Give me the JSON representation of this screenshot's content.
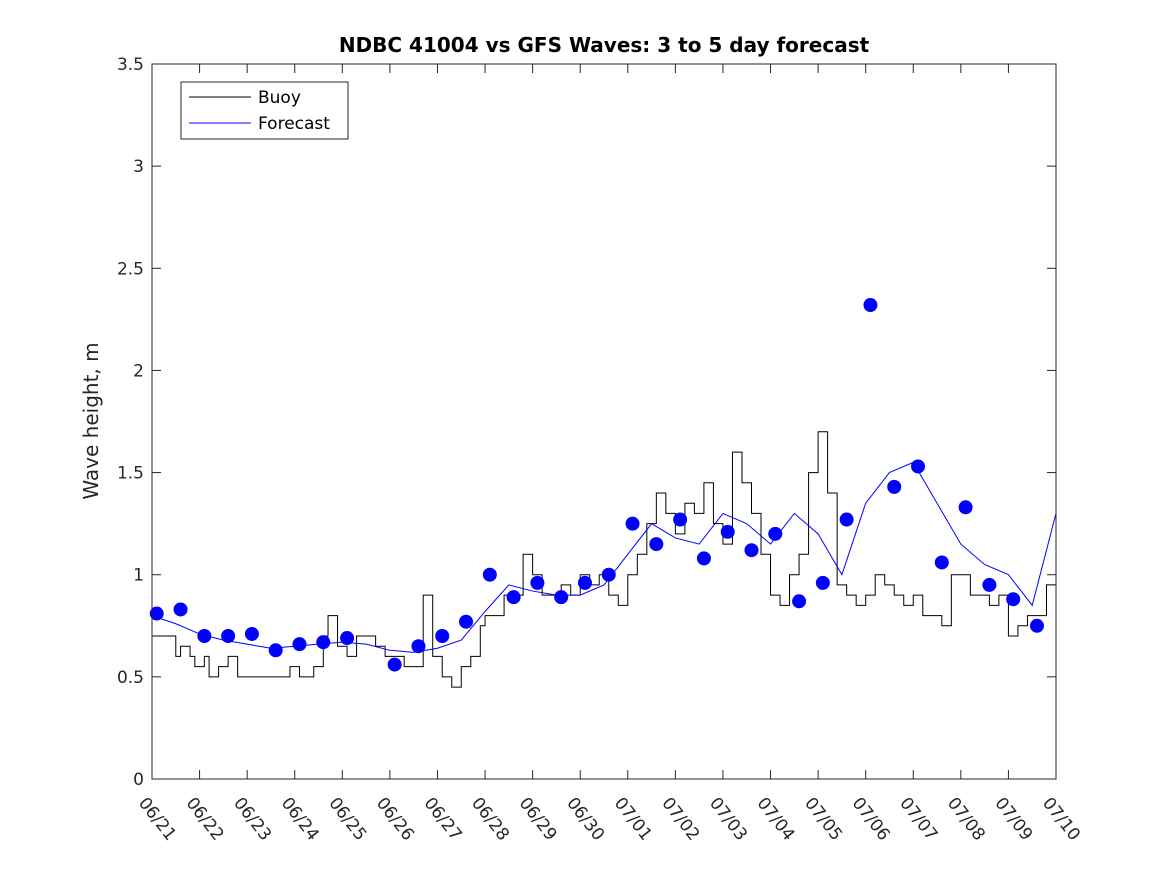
{
  "chart_data": {
    "type": "line",
    "title": "NDBC 41004 vs GFS Waves: 3 to 5 day forecast",
    "xlabel": "",
    "ylabel": "Wave height, m",
    "xlim": [
      "06/21",
      "07/10"
    ],
    "ylim": [
      0,
      3.5
    ],
    "x_ticks": [
      "06/21",
      "06/22",
      "06/23",
      "06/24",
      "06/25",
      "06/26",
      "06/27",
      "06/28",
      "06/29",
      "06/30",
      "07/01",
      "07/02",
      "07/03",
      "07/04",
      "07/05",
      "07/06",
      "07/07",
      "07/08",
      "07/09",
      "07/10"
    ],
    "y_ticks": [
      "0",
      "0.5",
      "1",
      "1.5",
      "2",
      "2.5",
      "3",
      "3.5"
    ],
    "grid": false,
    "legend": {
      "position": "top-left",
      "entries": [
        "Buoy",
        "Forecast"
      ]
    },
    "colors": {
      "buoy": "#000000",
      "forecast": "#0000ff"
    },
    "series": [
      {
        "name": "Buoy",
        "type": "line",
        "x_days": [
          0,
          0.1,
          0.3,
          0.5,
          0.6,
          0.8,
          0.9,
          1.1,
          1.2,
          1.4,
          1.6,
          1.8,
          2.0,
          2.3,
          2.6,
          2.9,
          3.1,
          3.4,
          3.6,
          3.7,
          3.9,
          4.1,
          4.3,
          4.5,
          4.7,
          4.9,
          5.0,
          5.1,
          5.3,
          5.5,
          5.7,
          5.9,
          6.1,
          6.3,
          6.5,
          6.7,
          6.9,
          7.0,
          7.2,
          7.4,
          7.6,
          7.8,
          8.0,
          8.2,
          8.4,
          8.6,
          8.8,
          9.0,
          9.2,
          9.4,
          9.6,
          9.8,
          10.0,
          10.2,
          10.4,
          10.6,
          10.8,
          11.0,
          11.2,
          11.4,
          11.6,
          11.8,
          12.0,
          12.2,
          12.4,
          12.6,
          12.8,
          13.0,
          13.2,
          13.4,
          13.6,
          13.8,
          14.0,
          14.2,
          14.4,
          14.6,
          14.8,
          15.0,
          15.2,
          15.4,
          15.6,
          15.8,
          16.0,
          16.2,
          16.4,
          16.6,
          16.8,
          17.0,
          17.2,
          17.4,
          17.6,
          17.8,
          18.0,
          18.2,
          18.4,
          18.6,
          18.8,
          19.0
        ],
        "values": [
          0.7,
          0.7,
          0.7,
          0.6,
          0.65,
          0.6,
          0.55,
          0.6,
          0.5,
          0.55,
          0.6,
          0.5,
          0.5,
          0.5,
          0.5,
          0.55,
          0.5,
          0.55,
          0.7,
          0.8,
          0.65,
          0.6,
          0.7,
          0.7,
          0.65,
          0.6,
          0.6,
          0.6,
          0.55,
          0.55,
          0.9,
          0.6,
          0.5,
          0.45,
          0.55,
          0.6,
          0.75,
          0.8,
          0.8,
          0.9,
          0.9,
          1.1,
          1.0,
          0.9,
          0.9,
          0.95,
          0.9,
          1.0,
          0.95,
          1.0,
          0.9,
          0.85,
          1.0,
          1.1,
          1.25,
          1.4,
          1.3,
          1.2,
          1.35,
          1.3,
          1.45,
          1.25,
          1.15,
          1.6,
          1.45,
          1.3,
          1.1,
          0.9,
          0.85,
          1.0,
          1.1,
          1.5,
          1.7,
          1.4,
          0.95,
          0.9,
          0.85,
          0.9,
          1.0,
          0.95,
          0.9,
          0.85,
          0.9,
          0.8,
          0.8,
          0.75,
          1.0,
          1.0,
          0.9,
          0.9,
          0.85,
          0.9,
          0.7,
          0.75,
          0.8,
          0.8,
          0.95,
          1.0
        ]
      },
      {
        "name": "Forecast",
        "type": "line",
        "x_days": [
          0,
          0.5,
          1.0,
          1.5,
          2.0,
          2.5,
          3.0,
          3.5,
          4.0,
          4.5,
          5.0,
          5.5,
          6.0,
          6.5,
          7.0,
          7.5,
          8.0,
          8.5,
          9.0,
          9.5,
          10.0,
          10.5,
          11.0,
          11.5,
          12.0,
          12.5,
          13.0,
          13.5,
          14.0,
          14.5,
          15.0,
          15.5,
          16.0,
          16.5,
          17.0,
          17.5,
          18.0,
          18.5,
          19.0
        ],
        "values": [
          0.8,
          0.76,
          0.71,
          0.68,
          0.66,
          0.64,
          0.65,
          0.66,
          0.67,
          0.66,
          0.63,
          0.62,
          0.64,
          0.68,
          0.82,
          0.95,
          0.92,
          0.9,
          0.9,
          0.95,
          1.1,
          1.25,
          1.18,
          1.15,
          1.3,
          1.25,
          1.15,
          1.3,
          1.2,
          1.0,
          1.35,
          1.5,
          1.55,
          1.35,
          1.15,
          1.05,
          1.0,
          0.85,
          1.3
        ]
      },
      {
        "name": "",
        "type": "scatter",
        "x_days": [
          0.1,
          0.6,
          1.1,
          1.6,
          2.1,
          2.6,
          3.1,
          3.6,
          4.1,
          5.1,
          5.6,
          6.1,
          6.6,
          7.1,
          7.6,
          8.1,
          8.6,
          9.1,
          9.6,
          10.1,
          10.6,
          11.1,
          11.6,
          12.1,
          12.6,
          13.1,
          13.6,
          14.1,
          14.6,
          15.1,
          15.6,
          16.1,
          16.6,
          17.1,
          17.6,
          18.1,
          18.6
        ],
        "values": [
          0.81,
          0.83,
          0.7,
          0.7,
          0.71,
          0.63,
          0.66,
          0.67,
          0.69,
          0.56,
          0.65,
          0.7,
          0.77,
          1.0,
          0.89,
          0.96,
          0.89,
          0.96,
          1.0,
          1.25,
          1.15,
          1.27,
          1.08,
          1.21,
          1.12,
          1.2,
          0.87,
          0.96,
          1.27,
          2.32,
          1.43,
          1.53,
          1.06,
          1.33,
          0.95,
          0.88,
          0.75
        ]
      }
    ]
  }
}
